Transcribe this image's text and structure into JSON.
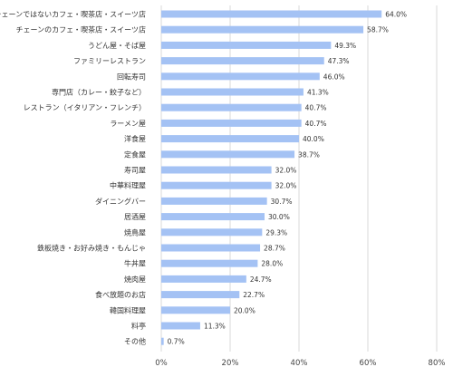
{
  "chart_data": {
    "type": "bar",
    "orientation": "horizontal",
    "categories": [
      "チェーンではないカフェ・喫茶店・スイーツ店",
      "チェーンのカフェ・喫茶店・スイーツ店",
      "うどん屋・そば屋",
      "ファミリーレストラン",
      "回転寿司",
      "専門店（カレー・餃子など）",
      "レストラン（イタリアン・フレンチ）",
      "ラーメン屋",
      "洋食屋",
      "定食屋",
      "寿司屋",
      "中華料理屋",
      "ダイニングバー",
      "居酒屋",
      "焼鳥屋",
      "鉄板焼き・お好み焼き・もんじゃ",
      "牛丼屋",
      "焼肉屋",
      "食べ放題のお店",
      "韓国料理屋",
      "料亭",
      "その他"
    ],
    "values": [
      64.0,
      58.7,
      49.3,
      47.3,
      46.0,
      41.3,
      40.7,
      40.7,
      40.0,
      38.7,
      32.0,
      32.0,
      30.7,
      30.0,
      29.3,
      28.7,
      28.0,
      24.7,
      22.7,
      20.0,
      11.3,
      0.7
    ],
    "value_labels": [
      "64.0%",
      "58.7%",
      "49.3%",
      "47.3%",
      "46.0%",
      "41.3%",
      "40.7%",
      "40.7%",
      "40.0%",
      "38.7%",
      "32.0%",
      "32.0%",
      "30.7%",
      "30.0%",
      "29.3%",
      "28.7%",
      "28.0%",
      "24.7%",
      "22.7%",
      "20.0%",
      "11.3%",
      "0.7%"
    ],
    "xticks": [
      0,
      20,
      40,
      60,
      80
    ],
    "xtick_labels": [
      "0%",
      "20%",
      "40%",
      "60%",
      "80%"
    ],
    "xlim": [
      0,
      80
    ],
    "grid": true,
    "legend": "none",
    "bar_color": "#a4c2f4",
    "grid_color": "#d9d9d9",
    "title": "",
    "xlabel": "",
    "ylabel": ""
  }
}
